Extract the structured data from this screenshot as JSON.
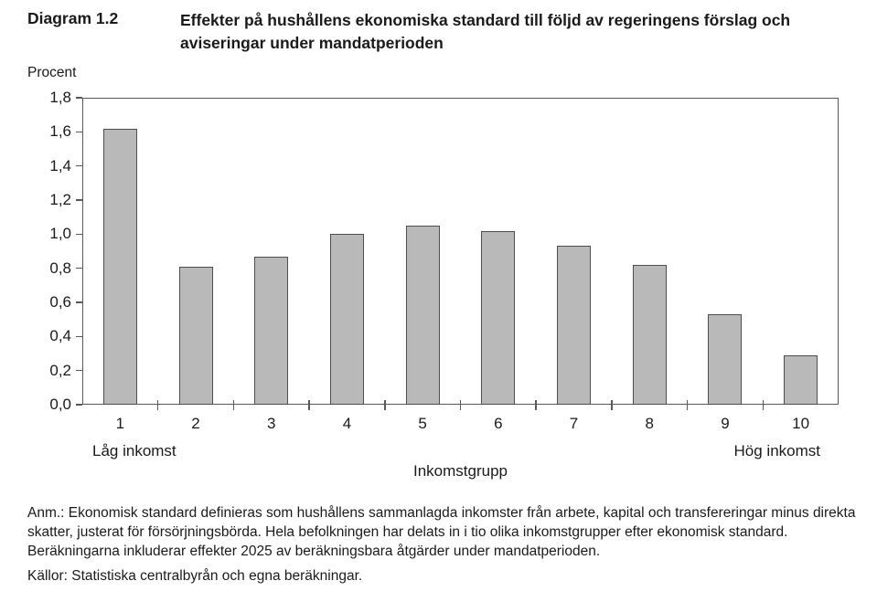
{
  "header": {
    "label": "Diagram 1.2",
    "title": "Effekter på hushållens ekonomiska standard till följd av regeringens förslag och aviseringar under mandatperioden"
  },
  "chart_data": {
    "type": "bar",
    "title": "Effekter på hushållens ekonomiska standard till följd av regeringens förslag och aviseringar under mandatperioden",
    "unit_label": "Procent",
    "categories": [
      "1",
      "2",
      "3",
      "4",
      "5",
      "6",
      "7",
      "8",
      "9",
      "10"
    ],
    "values": [
      1.62,
      0.81,
      0.87,
      1.0,
      1.05,
      1.02,
      0.93,
      0.82,
      0.53,
      0.29
    ],
    "xlabel": "Inkomstgrupp",
    "ylabel": "Procent",
    "ylim": [
      0,
      1.8
    ],
    "ytick_step": 0.2,
    "ytick_labels": [
      "0,0",
      "0,2",
      "0,4",
      "0,6",
      "0,8",
      "1,0",
      "1,2",
      "1,4",
      "1,6",
      "1,8"
    ],
    "x_left_annotation": "Låg inkomst",
    "x_right_annotation": "Hög inkomst",
    "grid": false,
    "legend": "none",
    "bar_fill": "#b9b9b9",
    "bar_border": "#4d4d4d",
    "axis_color": "#595959"
  },
  "footer": {
    "note": "Anm.: Ekonomisk standard definieras som hushållens sammanlagda inkomster från arbete, kapital och transfereringar minus direkta skatter, justerat för försörjningsbörda. Hela befolkningen har delats in i tio olika inkomstgrupper efter ekonomisk standard. Beräkningarna inkluderar effekter 2025 av beräkningsbara åtgärder under mandatperioden.",
    "sources": "Källor: Statistiska centralbyrån och egna beräkningar."
  }
}
